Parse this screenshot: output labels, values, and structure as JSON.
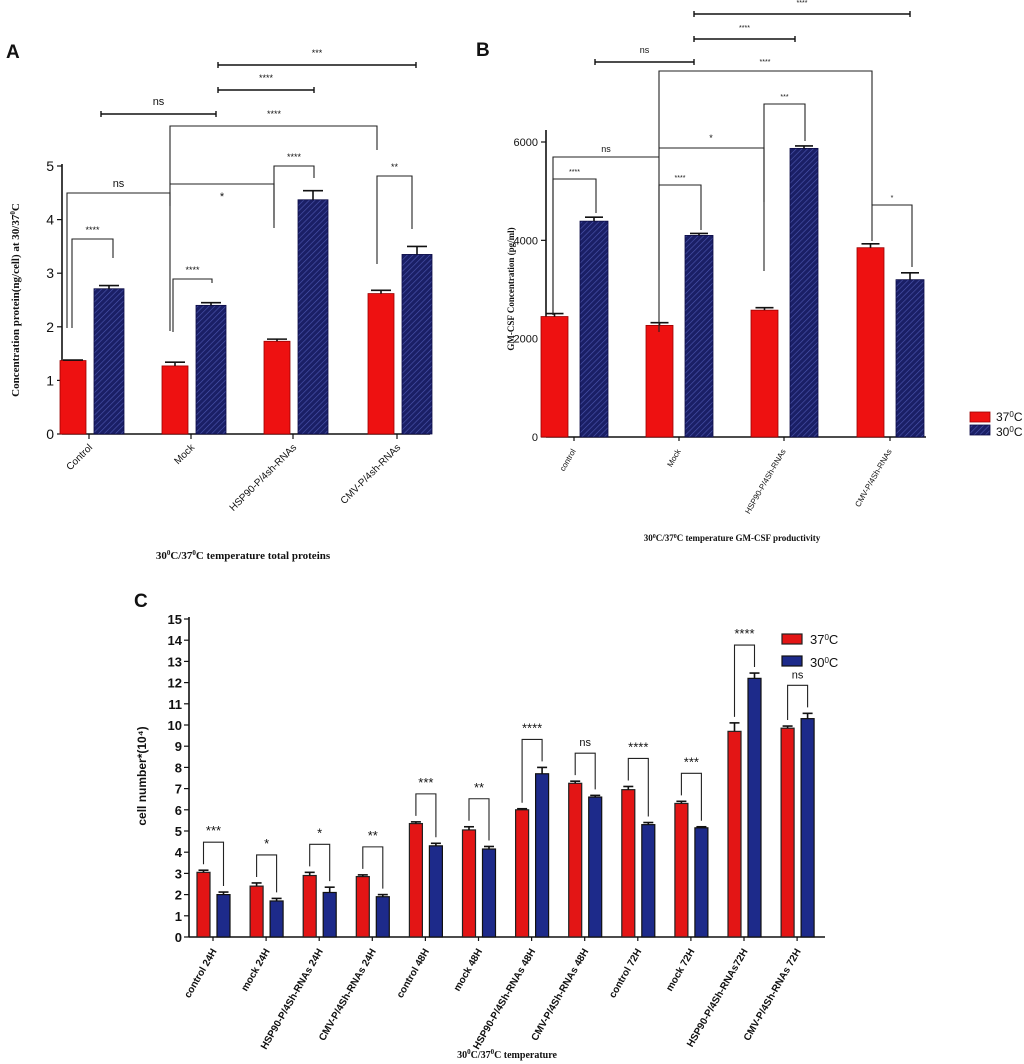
{
  "chart_data": [
    {
      "panel": "A",
      "type": "bar",
      "title": "",
      "categories": [
        "Control",
        "Mock",
        "HSP90-P/4sh-RNAs",
        "CMV-P/4sh-RNAs"
      ],
      "series": [
        {
          "name": "37°C",
          "values": [
            1.37,
            1.27,
            1.73,
            2.62
          ],
          "errors": [
            0.01,
            0.07,
            0.04,
            0.06
          ],
          "color": "#ee1111"
        },
        {
          "name": "30°C",
          "values": [
            2.71,
            2.4,
            4.37,
            3.35
          ],
          "errors": [
            0.06,
            0.05,
            0.17,
            0.15
          ],
          "color": "#1a1f66"
        }
      ],
      "ylabel": "Concentration protein(ng/cell) at 30/37°C",
      "xlabel": "30°C/37°C temperature total proteins",
      "yticks": [
        "0",
        "1",
        "2",
        "3",
        "4",
        "5"
      ],
      "ylim": [
        0,
        5
      ],
      "significance": [
        {
          "groups": [
            "Control 37°C",
            "Control 30°C"
          ],
          "label": "****"
        },
        {
          "groups": [
            "Mock 37°C",
            "Mock 30°C"
          ],
          "label": "****"
        },
        {
          "groups": [
            "HSP90 37°C",
            "HSP90 30°C"
          ],
          "label": "****"
        },
        {
          "groups": [
            "CMV 37°C",
            "CMV 30°C"
          ],
          "label": "**"
        },
        {
          "groups": [
            "Control",
            "Mock"
          ],
          "label": "ns"
        },
        {
          "groups": [
            "Mock",
            "HSP90"
          ],
          "label": "*"
        },
        {
          "groups": [
            "Mock",
            "CMV"
          ],
          "label": "****"
        },
        {
          "groups": [
            "Control",
            "Mock (line)"
          ],
          "label": "ns"
        },
        {
          "groups": [
            "Mock",
            "HSP90 (line)"
          ],
          "label": "****"
        },
        {
          "groups": [
            "Mock",
            "CMV (line)"
          ],
          "label": "***"
        }
      ]
    },
    {
      "panel": "B",
      "type": "bar",
      "title": "",
      "categories": [
        "control",
        "Mock",
        "HSP90-P/4Sh-RNAs",
        "CMV-P/4Sh-RNAs"
      ],
      "series": [
        {
          "name": "37°C",
          "values": [
            2450,
            2270,
            2580,
            3850
          ],
          "errors": [
            60,
            55,
            50,
            80
          ],
          "color": "#ee1111"
        },
        {
          "name": "30°C",
          "values": [
            4390,
            4100,
            5870,
            3200
          ],
          "errors": [
            80,
            40,
            50,
            140
          ],
          "color": "#1a1f66"
        }
      ],
      "ylabel": "GM-CSF Concentration (pg/ml)",
      "xlabel": "30°C/37°C temperature GM-CSF productivity",
      "yticks": [
        "0",
        "2000",
        "4000",
        "6000"
      ],
      "ylim": [
        0,
        6000
      ],
      "legend": {
        "position": "right",
        "entries": [
          "37°C",
          "30°C"
        ]
      },
      "significance": [
        {
          "groups": [
            "control 37°C",
            "control 30°C"
          ],
          "label": "****"
        },
        {
          "groups": [
            "Mock 37°C",
            "Mock 30°C"
          ],
          "label": "****"
        },
        {
          "groups": [
            "HSP90 37°C",
            "HSP90 30°C"
          ],
          "label": "***"
        },
        {
          "groups": [
            "CMV 37°C",
            "CMV 30°C"
          ],
          "label": "*"
        },
        {
          "groups": [
            "control",
            "Mock"
          ],
          "label": "ns"
        },
        {
          "groups": [
            "Mock",
            "HSP90"
          ],
          "label": "*"
        },
        {
          "groups": [
            "Mock",
            "CMV"
          ],
          "label": "****"
        },
        {
          "groups": [
            "control",
            "Mock (line)"
          ],
          "label": "ns"
        },
        {
          "groups": [
            "Mock",
            "HSP90 (line)"
          ],
          "label": "****"
        },
        {
          "groups": [
            "Mock",
            "CMV (line)"
          ],
          "label": "****"
        }
      ]
    },
    {
      "panel": "C",
      "type": "bar",
      "title": "",
      "categories": [
        "control 24H",
        "mock  24H",
        "HSP90-P/4Sh-RNAs 24H",
        "CMV-P/4Sh-RNAs 24H",
        "control 48H",
        "mock  48H",
        "HSP90-P/4Sh-RNAs 48H",
        "CMV-P/4Sh-RNAs 48H",
        "control 72H",
        "mock  72H",
        "HSP90-P/4Sh-RNAs72H",
        "CMV-P/4Sh-RNAs 72H"
      ],
      "series": [
        {
          "name": "37°C",
          "values": [
            3.05,
            2.4,
            2.9,
            2.85,
            5.35,
            5.05,
            6.0,
            7.25,
            6.95,
            6.3,
            9.7,
            9.85
          ],
          "errors": [
            0.1,
            0.15,
            0.15,
            0.08,
            0.08,
            0.15,
            0.05,
            0.1,
            0.15,
            0.1,
            0.4,
            0.1
          ],
          "color": "#e31515"
        },
        {
          "name": "30°C",
          "values": [
            2.0,
            1.7,
            2.1,
            1.9,
            4.3,
            4.15,
            7.7,
            6.6,
            5.3,
            5.15,
            12.2,
            10.3
          ],
          "errors": [
            0.12,
            0.12,
            0.25,
            0.1,
            0.12,
            0.12,
            0.3,
            0.08,
            0.1,
            0.05,
            0.25,
            0.25
          ],
          "color": "#1d2a8a"
        }
      ],
      "significance": [
        "***",
        "*",
        "*",
        "**",
        "***",
        "**",
        "****",
        "ns",
        "****",
        "***",
        "****",
        "ns"
      ],
      "ylabel": "cell number*(10⁴)",
      "xlabel": "30°C/37°C temperature",
      "yticks": [
        "0",
        "1",
        "2",
        "3",
        "4",
        "5",
        "6",
        "7",
        "8",
        "9",
        "10",
        "11",
        "12",
        "13",
        "14",
        "15"
      ],
      "ylim": [
        0,
        15
      ],
      "legend": {
        "position": "top-right",
        "entries": [
          "37°C",
          "30°C"
        ]
      }
    }
  ],
  "panel_letters": [
    "A",
    "B",
    "C"
  ]
}
